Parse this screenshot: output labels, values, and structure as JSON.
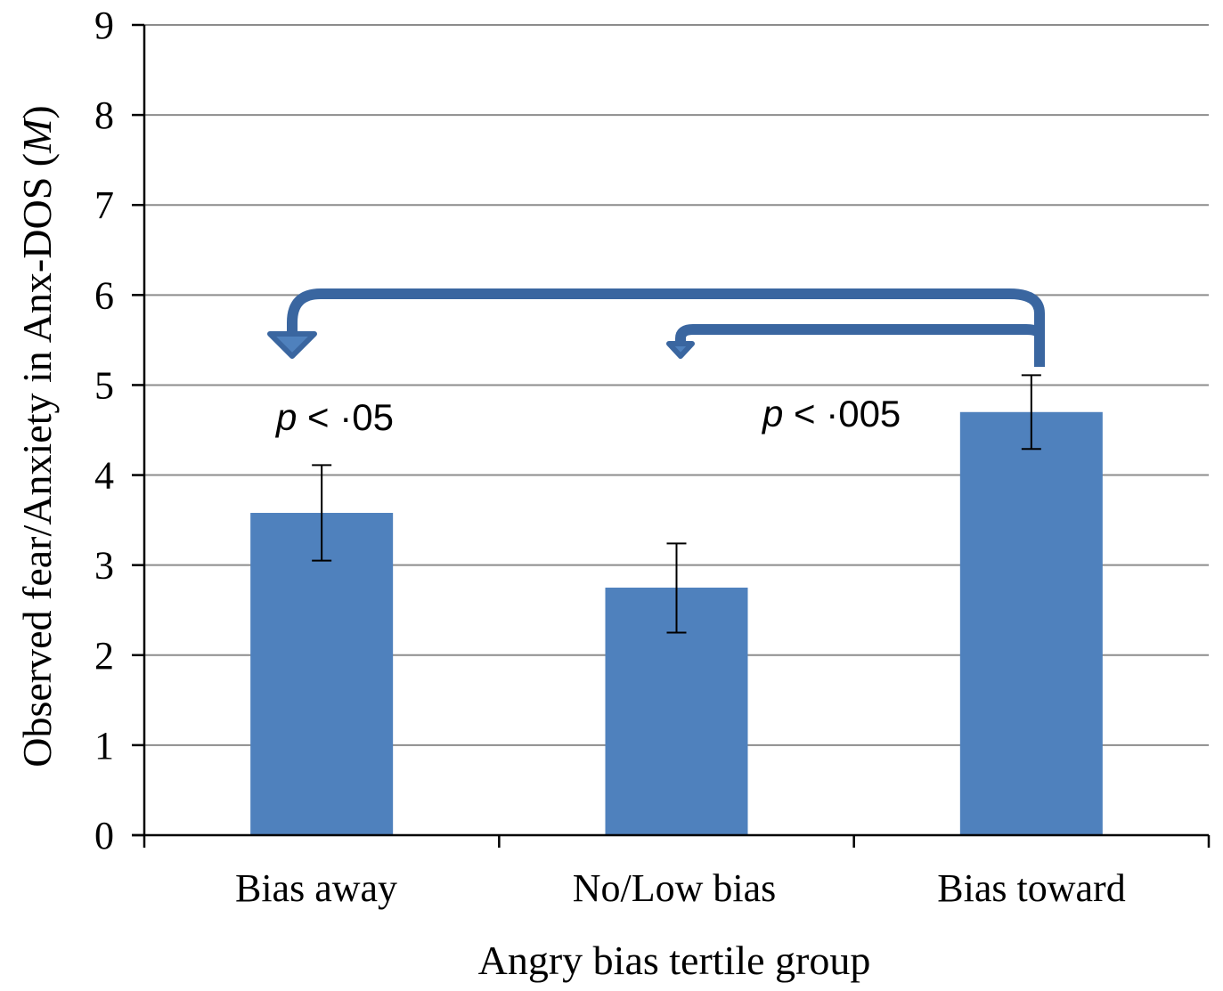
{
  "chart_data": {
    "type": "bar",
    "categories": [
      "Bias away",
      "No/Low bias",
      "Bias toward"
    ],
    "values": [
      3.58,
      2.75,
      4.7
    ],
    "error_bars": [
      {
        "low": 3.05,
        "high": 4.11
      },
      {
        "low": 2.25,
        "high": 3.24
      },
      {
        "low": 4.29,
        "high": 5.11
      }
    ],
    "xlabel": "Angry bias tertile group",
    "ylabel_prefix": "Observed fear/Anxiety in Anx-DOS (",
    "ylabel_italic": "M",
    "ylabel_suffix": ")",
    "ylim": [
      0,
      9
    ],
    "yticks": [
      "0",
      "1",
      "2",
      "3",
      "4",
      "5",
      "6",
      "7",
      "8",
      "9"
    ],
    "grid": true,
    "bar_color": "#4f81bd",
    "arrow_color": "#3a66a0",
    "annotations": [
      {
        "id": "away",
        "italic": "p",
        "text": " < ·05"
      },
      {
        "id": "low",
        "italic": "p",
        "text": " < ·005"
      }
    ]
  }
}
